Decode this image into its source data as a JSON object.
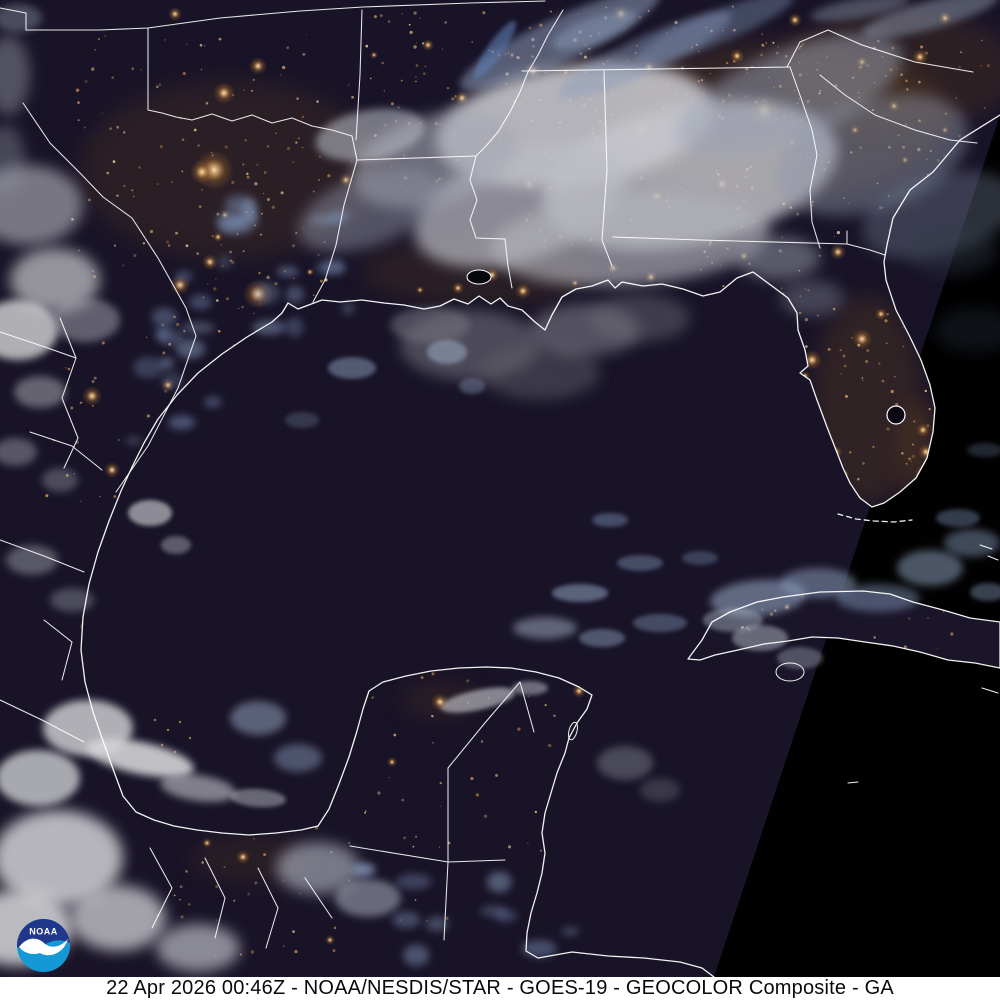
{
  "caption": {
    "text": "22 Apr 2026 00:46Z - NOAA/NESDIS/STAR - GOES-19 - GEOCOLOR Composite - GA",
    "background": "#ffffff",
    "text_color": "#0a0a0a"
  },
  "logo": {
    "text": "NOAA",
    "top_color": "#20378c",
    "bottom_color": "#1598d6",
    "bird_color": "#ffffff"
  },
  "colors": {
    "ocean": "#010102",
    "land": "#181327",
    "map_lines": "#ffffff",
    "city_light_core": "#ffe7c0",
    "city_light_glow": "#c98a43",
    "cloud_white": "#d2d2d6",
    "cloud_blue": "#8ea3c6"
  }
}
